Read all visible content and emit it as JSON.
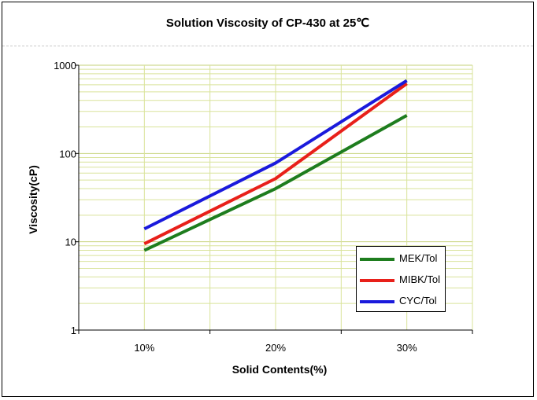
{
  "chart_data": {
    "type": "line",
    "title": "Solution Viscosity of CP-430  at 25℃",
    "xlabel": "Solid Contents(%)",
    "ylabel": "Viscosity(cP)",
    "categories": [
      "10%",
      "20%",
      "30%"
    ],
    "y_scale": "log",
    "ylim": [
      1,
      1000
    ],
    "y_ticks": [
      "1",
      "10",
      "100",
      "1000"
    ],
    "grid": true,
    "legend_position": "bottom-right",
    "series": [
      {
        "name": "MEK/Tol",
        "color": "#1e7d1e",
        "values": [
          8,
          40,
          270
        ]
      },
      {
        "name": "MIBK/Tol",
        "color": "#e8201a",
        "values": [
          9.5,
          52,
          620
        ]
      },
      {
        "name": "CYC/Tol",
        "color": "#1a1adc",
        "values": [
          14,
          78,
          670
        ]
      }
    ]
  }
}
